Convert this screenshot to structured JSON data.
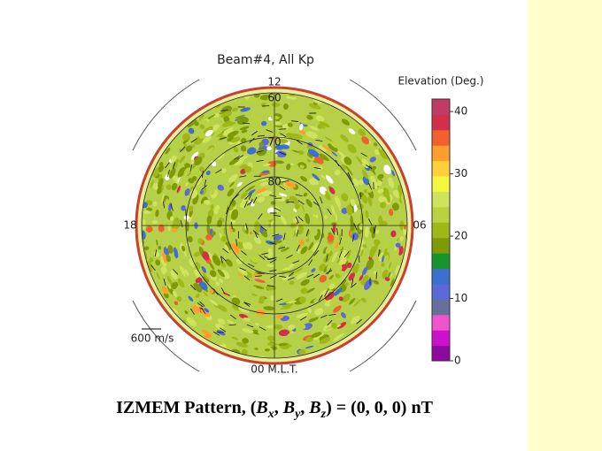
{
  "title": "Beam#4, All Kp",
  "mlt_labels": {
    "top": "12",
    "left": "18",
    "right": "06",
    "bottom": "00 M.L.T."
  },
  "latitude_labels": [
    "60",
    "70",
    "80"
  ],
  "scale_label": "600 m/s",
  "colorbar": {
    "label": "Elevation (Deg.)",
    "lim": [
      0,
      42
    ],
    "ticks": [
      0,
      10,
      20,
      30,
      40
    ],
    "colors": [
      "#8e0a9e",
      "#cc11cc",
      "#ee55cc",
      "#66709a",
      "#5a6ad8",
      "#3c6fd0",
      "#15952e",
      "#7f9a06",
      "#9fb818",
      "#b9d23e",
      "#cfe35e",
      "#f4f640",
      "#ffd23a",
      "#ff9e2c",
      "#f2602e",
      "#d2304a",
      "#c23a66"
    ]
  },
  "caption": [
    {
      "text": "IZMEM Pattern, ("
    },
    {
      "text": "B",
      "italic": true
    },
    {
      "text": "x",
      "italic": true,
      "sub": true
    },
    {
      "text": ", "
    },
    {
      "text": "B",
      "italic": true
    },
    {
      "text": "y",
      "italic": true,
      "sub": true
    },
    {
      "text": ", "
    },
    {
      "text": "B",
      "italic": true
    },
    {
      "text": "z",
      "italic": true,
      "sub": true
    },
    {
      "text": ") = (0, 0, 0) nT"
    }
  ]
}
